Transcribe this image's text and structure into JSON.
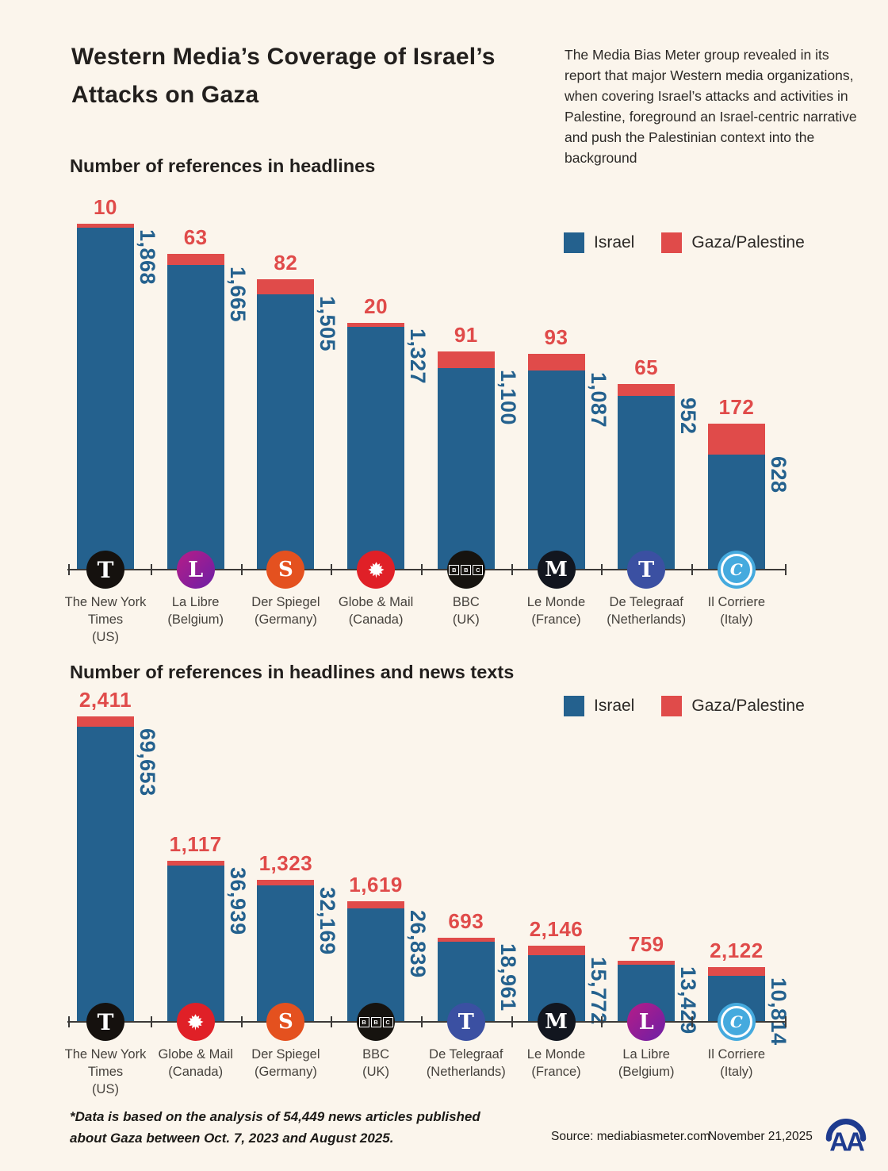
{
  "page": {
    "background": "#fbf5ec"
  },
  "header": {
    "title": "Western Media’s Coverage of Israel’s Attacks on Gaza",
    "intro": "The Media Bias Meter group revealed in its report that major Western media organizations, when covering Israel’s attacks and activities in Palestine, foreground an Israel-centric narrative and push the Palestinian context into the background"
  },
  "legend": {
    "israel_label": "Israel",
    "gaza_label": "Gaza/Palestine",
    "israel_color": "#24618e",
    "gaza_color": "#e04b4a"
  },
  "chart_data": [
    {
      "type": "bar",
      "stacked": true,
      "title": "Number of references in headlines",
      "series": [
        "Israel",
        "Gaza/Palestine"
      ],
      "legend_position": "top-right",
      "bars": [
        {
          "outlet": "The New York Times",
          "country": "(US)",
          "logo": "nyt",
          "israel": 1868,
          "gaza": 10
        },
        {
          "outlet": "La Libre",
          "country": "(Belgium)",
          "logo": "lalibre",
          "israel": 1665,
          "gaza": 63
        },
        {
          "outlet": "Der Spiegel",
          "country": "(Germany)",
          "logo": "spiegel",
          "israel": 1505,
          "gaza": 82
        },
        {
          "outlet": "Globe & Mail",
          "country": "(Canada)",
          "logo": "globemail",
          "israel": 1327,
          "gaza": 20
        },
        {
          "outlet": "BBC",
          "country": "(UK)",
          "logo": "bbc",
          "israel": 1100,
          "gaza": 91
        },
        {
          "outlet": "Le Monde",
          "country": "(France)",
          "logo": "lemonde",
          "israel": 1087,
          "gaza": 93
        },
        {
          "outlet": "De Telegraaf",
          "country": "(Netherlands)",
          "logo": "telegraaf",
          "israel": 952,
          "gaza": 65
        },
        {
          "outlet": "Il Corriere",
          "country": "(Italy)",
          "logo": "corriere",
          "israel": 628,
          "gaza": 172
        }
      ]
    },
    {
      "type": "bar",
      "stacked": true,
      "title": "Number of references in headlines and news texts",
      "series": [
        "Israel",
        "Gaza/Palestine"
      ],
      "legend_position": "top-right",
      "bars": [
        {
          "outlet": "The New York Times",
          "country": "(US)",
          "logo": "nyt",
          "israel": 69653,
          "gaza": 2411
        },
        {
          "outlet": "Globe & Mail",
          "country": "(Canada)",
          "logo": "globemail",
          "israel": 36939,
          "gaza": 1117
        },
        {
          "outlet": "Der Spiegel",
          "country": "(Germany)",
          "logo": "spiegel",
          "israel": 32169,
          "gaza": 1323
        },
        {
          "outlet": "BBC",
          "country": "(UK)",
          "logo": "bbc",
          "israel": 26839,
          "gaza": 1619
        },
        {
          "outlet": "De Telegraaf",
          "country": "(Netherlands)",
          "logo": "telegraaf",
          "israel": 18961,
          "gaza": 693
        },
        {
          "outlet": "Le Monde",
          "country": "(France)",
          "logo": "lemonde",
          "israel": 15772,
          "gaza": 2146
        },
        {
          "outlet": "La Libre",
          "country": "(Belgium)",
          "logo": "lalibre",
          "israel": 13429,
          "gaza": 759
        },
        {
          "outlet": "Il Corriere",
          "country": "(Italy)",
          "logo": "corriere",
          "israel": 10814,
          "gaza": 2122
        }
      ]
    }
  ],
  "footer": {
    "note": "*Data is based on the analysis of 54,449 news articles published about Gaza between Oct. 7, 2023 and August 2025.",
    "source": "Source: mediabiasmeter.com",
    "date": "November 21,2025",
    "agency_logo": "anadolu-agency"
  }
}
